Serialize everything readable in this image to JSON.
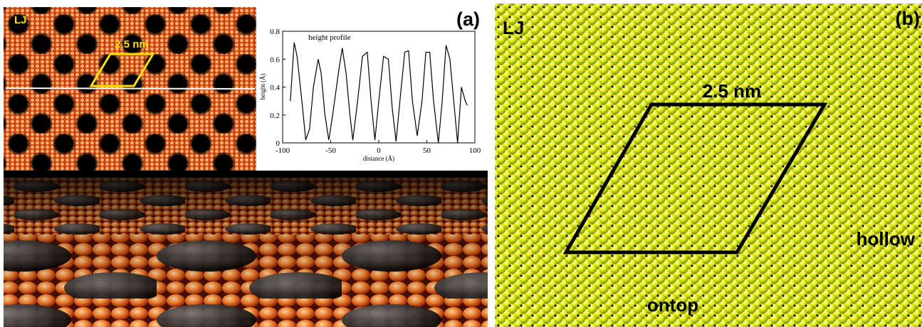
{
  "panel_a": {
    "label": "(a)",
    "model": "LJ",
    "scale": "2.5 nm"
  },
  "panel_b": {
    "label": "(b)",
    "model": "LJ",
    "scale": "2.5 nm",
    "site_hollow": "hollow",
    "site_ontop": "ontop"
  },
  "chart_data": {
    "type": "line",
    "annotation": "height profile",
    "x_label": "distance (Å)",
    "y_label": "height (Å)",
    "x": [
      -92,
      -88,
      -85,
      -80,
      -76,
      -72,
      -68,
      -63,
      -60,
      -56,
      -52,
      -48,
      -42,
      -38,
      -34,
      -30,
      -27,
      -22,
      -17,
      -12,
      -8,
      -4,
      0,
      5,
      10,
      14,
      18,
      22,
      27,
      31,
      35,
      40,
      45,
      49,
      53,
      57,
      62,
      66,
      70,
      74,
      78,
      82,
      86,
      90,
      92
    ],
    "values": [
      0.3,
      0.72,
      0.62,
      0.3,
      0.02,
      0.1,
      0.4,
      0.6,
      0.5,
      0.2,
      0.02,
      0.2,
      0.5,
      0.68,
      0.5,
      0.2,
      0.02,
      0.3,
      0.62,
      0.65,
      0.3,
      0.02,
      0.3,
      0.62,
      0.6,
      0.25,
      0.01,
      0.3,
      0.65,
      0.66,
      0.3,
      0.05,
      0.3,
      0.65,
      0.65,
      0.3,
      0.0,
      0.3,
      0.7,
      0.6,
      0.3,
      0.0,
      0.4,
      0.3,
      0.27
    ],
    "color": "#000000",
    "xlim": [
      -100,
      100
    ],
    "xticks": [
      -100,
      -50,
      0,
      50,
      100
    ],
    "ylim": [
      0,
      0.8
    ],
    "yticks": [
      0,
      0.2,
      0.4,
      0.6,
      0.8
    ]
  }
}
